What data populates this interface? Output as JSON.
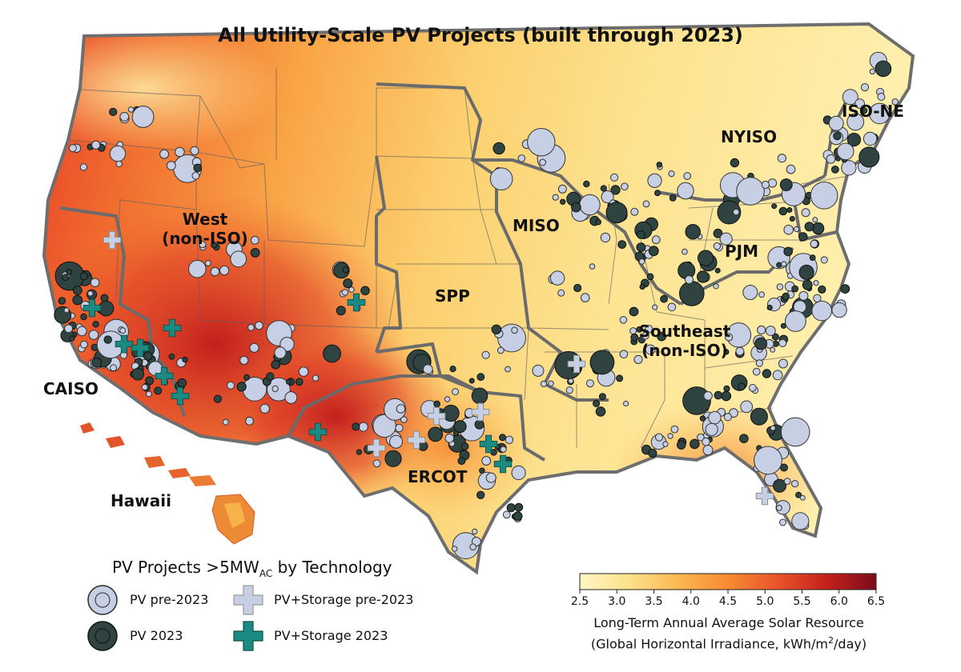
{
  "title": "All Utility-Scale PV Projects (built through 2023)",
  "regions": {
    "west_line1": "West",
    "west_line2": "(non-ISO)",
    "miso": "MISO",
    "spp": "SPP",
    "pjm": "PJM",
    "nyiso": "NYISO",
    "isone": "ISO-NE",
    "caiso": "CAISO",
    "ercot": "ERCOT",
    "southeast_line1": "Southeast",
    "southeast_line2": "(non-ISO)",
    "hawaii": "Hawaii"
  },
  "legend": {
    "title_main": "PV Projects >5MW",
    "title_sub": "AC",
    "title_rest": " by Technology",
    "items": [
      {
        "label": "PV pre-2023",
        "marker": "circle",
        "color": "#c6cfe3"
      },
      {
        "label": "PV 2023",
        "marker": "circle",
        "color": "#2f4440"
      },
      {
        "label": "PV+Storage pre-2023",
        "marker": "plus",
        "color": "#c6cfe3"
      },
      {
        "label": "PV+Storage 2023",
        "marker": "plus",
        "color": "#1a8a82"
      }
    ]
  },
  "colorbar": {
    "ticks": [
      "2.5",
      "3.0",
      "3.5",
      "4.0",
      "4.5",
      "5.0",
      "5.5",
      "6.0",
      "6.5"
    ],
    "min": 2.5,
    "max": 6.5,
    "colors": [
      "#fff6c4",
      "#fde08a",
      "#fbb955",
      "#f78a33",
      "#e8532a",
      "#c6221c",
      "#7c0c1c"
    ],
    "title_line1": "Long-Term Annual Average Solar Resource",
    "title_line2_pre": "(Global Horizontal Irradiance, kWh/m",
    "title_line2_sup": "2",
    "title_line2_post": "/day)"
  }
}
